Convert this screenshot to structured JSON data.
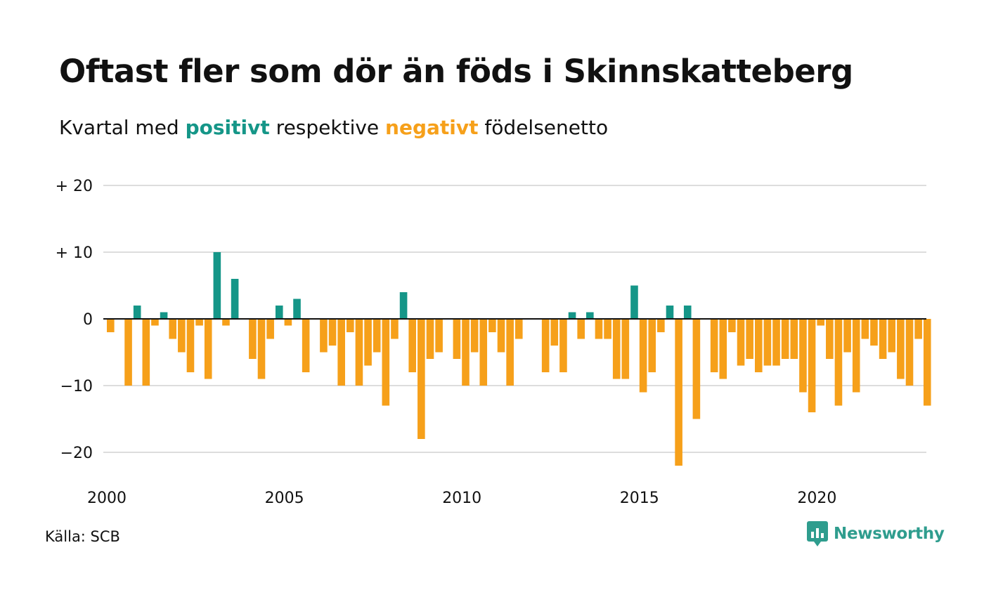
{
  "title": "Oftast fler som dör än föds i Skinnskatteberg",
  "subtitle": {
    "prefix": "Kvartal med ",
    "positive_word": "positivt",
    "middle": " respektive ",
    "negative_word": "negativt",
    "suffix": " födelsenetto"
  },
  "source": "Källa: SCB",
  "brand": {
    "name": "Newsworthy",
    "icon": "newsworthy-chart-bubble-icon"
  },
  "colors": {
    "positive": "#159688",
    "negative": "#f6a01a",
    "grid": "#dddddd",
    "zero": "#111111"
  },
  "chart_data": {
    "type": "bar",
    "x_start": "2000 Q1",
    "x_end": "2023 Q1",
    "ylim": [
      -25,
      20
    ],
    "yticks": [
      {
        "value": 20,
        "label": "+ 20"
      },
      {
        "value": 10,
        "label": "+ 10"
      },
      {
        "value": 0,
        "label": "0"
      },
      {
        "value": -10,
        "label": "−10"
      },
      {
        "value": -20,
        "label": "−20"
      }
    ],
    "xticks": [
      "2000",
      "2005",
      "2010",
      "2015",
      "2020"
    ],
    "grid": true,
    "series": [
      {
        "values": [
          -2,
          0,
          -10,
          2,
          -10,
          -1,
          1,
          -3,
          -5,
          -8,
          -1,
          -9,
          10,
          -1,
          6,
          0,
          -6,
          -9,
          -3,
          2,
          -1,
          3,
          -8,
          0,
          -5,
          -4,
          -10,
          -2,
          -10,
          -7,
          -5,
          -13,
          -3,
          4,
          -8,
          -18,
          -6,
          -5,
          0,
          -6,
          -10,
          -5,
          -10,
          -2,
          -5,
          -10,
          -3,
          0,
          0,
          -8,
          -4,
          -8,
          1,
          -3,
          1,
          -3,
          -3,
          -9,
          -9,
          5,
          -11,
          -8,
          -2,
          2,
          -22,
          2,
          -15,
          0,
          -8,
          -9,
          -2,
          -7,
          -6,
          -8,
          -7,
          -7,
          -6,
          -6,
          -11,
          -14,
          -1,
          -6,
          -13,
          -5,
          -11,
          -3,
          -4,
          -6,
          -5,
          -9,
          -10,
          -3,
          -13
        ]
      }
    ]
  }
}
